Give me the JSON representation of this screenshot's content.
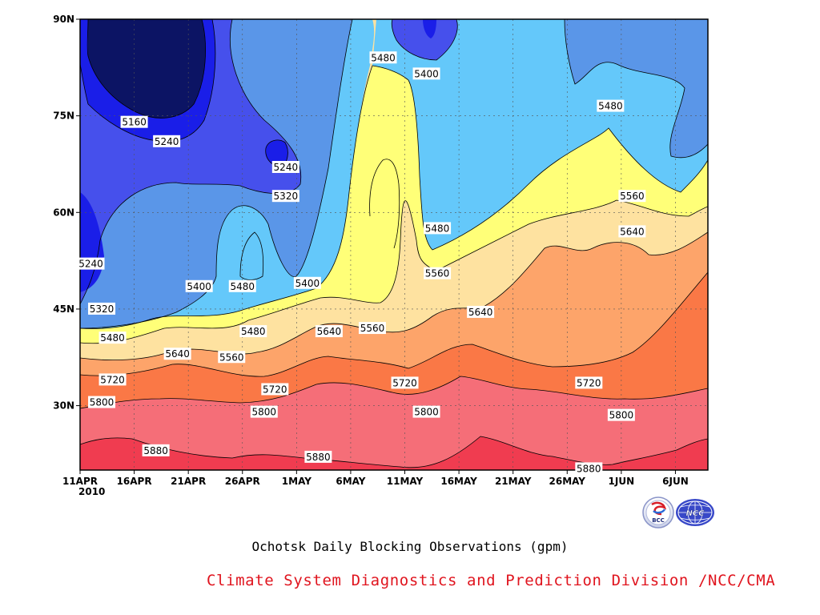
{
  "chart_data": {
    "type": "contour",
    "title": "Ochotsk Daily Blocking Observations (gpm)",
    "credit": "Climate System Diagnostics and Prediction Division /NCC/CMA",
    "logos": [
      "BCC",
      "NCC"
    ],
    "x_ticks": [
      "11APR",
      "16APR",
      "21APR",
      "26APR",
      "1MAY",
      "6MAY",
      "11MAY",
      "16MAY",
      "21MAY",
      "26MAY",
      "1JUN",
      "6JUN"
    ],
    "x_year_label": "2010",
    "x_range": [
      "2010-04-11",
      "2010-06-08"
    ],
    "y_ticks": [
      "30N",
      "45N",
      "60N",
      "75N",
      "90N"
    ],
    "y_range": [
      20,
      90
    ],
    "grid": true,
    "contour_levels": [
      5160,
      5240,
      5320,
      5400,
      5480,
      5560,
      5640,
      5720,
      5800,
      5880
    ],
    "level_colors": [
      "#0c1464",
      "#1a1ee8",
      "#4650ec",
      "#5a96e8",
      "#64c8fa",
      "#ffff78",
      "#fee2a0",
      "#fda46a",
      "#fa7846",
      "#f56e78",
      "#f03c50"
    ],
    "contour_labels": [
      {
        "text": "5160",
        "date": "2010-04-16",
        "lat": 74
      },
      {
        "text": "5240",
        "date": "2010-04-19",
        "lat": 71
      },
      {
        "text": "5240",
        "date": "2010-04-30",
        "lat": 67
      },
      {
        "text": "5240",
        "date": "2010-04-12",
        "lat": 52
      },
      {
        "text": "5320",
        "date": "2010-04-30",
        "lat": 62.5
      },
      {
        "text": "5320",
        "date": "2010-04-13",
        "lat": 45
      },
      {
        "text": "5400",
        "date": "2010-05-13",
        "lat": 81.5
      },
      {
        "text": "5400",
        "date": "2010-04-22",
        "lat": 48.5
      },
      {
        "text": "5400",
        "date": "2010-05-02",
        "lat": 49
      },
      {
        "text": "5480",
        "date": "2010-05-09",
        "lat": 84
      },
      {
        "text": "5480",
        "date": "2010-05-30",
        "lat": 76.5
      },
      {
        "text": "5480",
        "date": "2010-05-14",
        "lat": 57.5
      },
      {
        "text": "5480",
        "date": "2010-04-26",
        "lat": 48.5
      },
      {
        "text": "5480",
        "date": "2010-04-27",
        "lat": 41.5
      },
      {
        "text": "5480",
        "date": "2010-04-14",
        "lat": 40.5
      },
      {
        "text": "5560",
        "date": "2010-06-01",
        "lat": 62.5
      },
      {
        "text": "5560",
        "date": "2010-05-14",
        "lat": 50.5
      },
      {
        "text": "5560",
        "date": "2010-05-08",
        "lat": 42
      },
      {
        "text": "5560",
        "date": "2010-04-25",
        "lat": 37.5
      },
      {
        "text": "5640",
        "date": "2010-06-01",
        "lat": 57
      },
      {
        "text": "5640",
        "date": "2010-05-18",
        "lat": 44.5
      },
      {
        "text": "5640",
        "date": "2010-05-04",
        "lat": 41.5
      },
      {
        "text": "5640",
        "date": "2010-04-20",
        "lat": 38
      },
      {
        "text": "5720",
        "date": "2010-05-28",
        "lat": 33.5
      },
      {
        "text": "5720",
        "date": "2010-05-11",
        "lat": 33.5
      },
      {
        "text": "5720",
        "date": "2010-04-29",
        "lat": 32.5
      },
      {
        "text": "5720",
        "date": "2010-04-14",
        "lat": 34
      },
      {
        "text": "5800",
        "date": "2010-05-31",
        "lat": 28.5
      },
      {
        "text": "5800",
        "date": "2010-05-13",
        "lat": 29
      },
      {
        "text": "5800",
        "date": "2010-04-28",
        "lat": 29
      },
      {
        "text": "5800",
        "date": "2010-04-13",
        "lat": 30.5
      },
      {
        "text": "5880",
        "date": "2010-05-03",
        "lat": 22
      },
      {
        "text": "5880",
        "date": "2010-04-18",
        "lat": 23
      },
      {
        "text": "5880",
        "date": "2010-05-28",
        "lat": 20.2
      }
    ]
  }
}
